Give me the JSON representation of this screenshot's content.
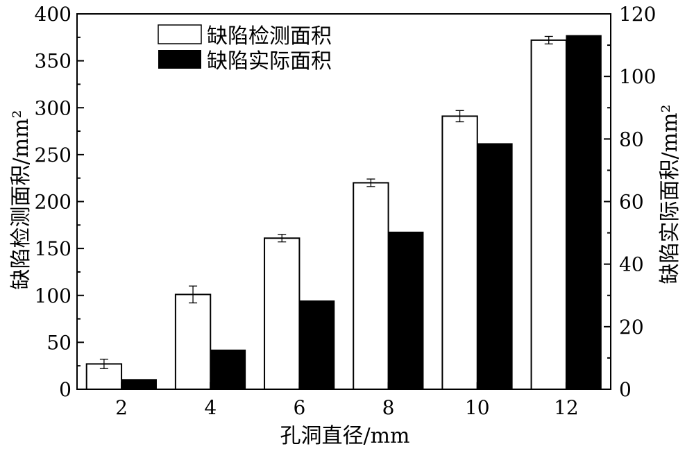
{
  "chart_data": {
    "type": "bar",
    "categories": [
      "2",
      "4",
      "6",
      "8",
      "10",
      "12"
    ],
    "xlabel": "孔洞直径/mm",
    "ylabel_left": "缺陷检测面积/mm²",
    "ylabel_right": "缺陷实际面积/mm²",
    "ylim_left": [
      0,
      400
    ],
    "ylim_right": [
      0,
      120
    ],
    "yticks_left": [
      "0",
      "50",
      "100",
      "150",
      "200",
      "250",
      "300",
      "350",
      "400"
    ],
    "yticks_right": [
      "0",
      "20",
      "40",
      "60",
      "80",
      "100",
      "120"
    ],
    "grid": false,
    "legend_position": "top-left",
    "series": [
      {
        "name": "缺陷检测面积",
        "axis": "left",
        "fill": "#ffffff",
        "stroke": "#000000",
        "values": [
          27,
          101,
          161,
          220,
          291,
          372
        ],
        "errors": [
          5,
          9,
          4,
          4,
          6,
          4
        ]
      },
      {
        "name": "缺陷实际面积",
        "axis": "right",
        "fill": "#000000",
        "stroke": "#000000",
        "values": [
          3.14,
          12.57,
          28.27,
          50.27,
          78.54,
          113.1
        ]
      }
    ]
  }
}
